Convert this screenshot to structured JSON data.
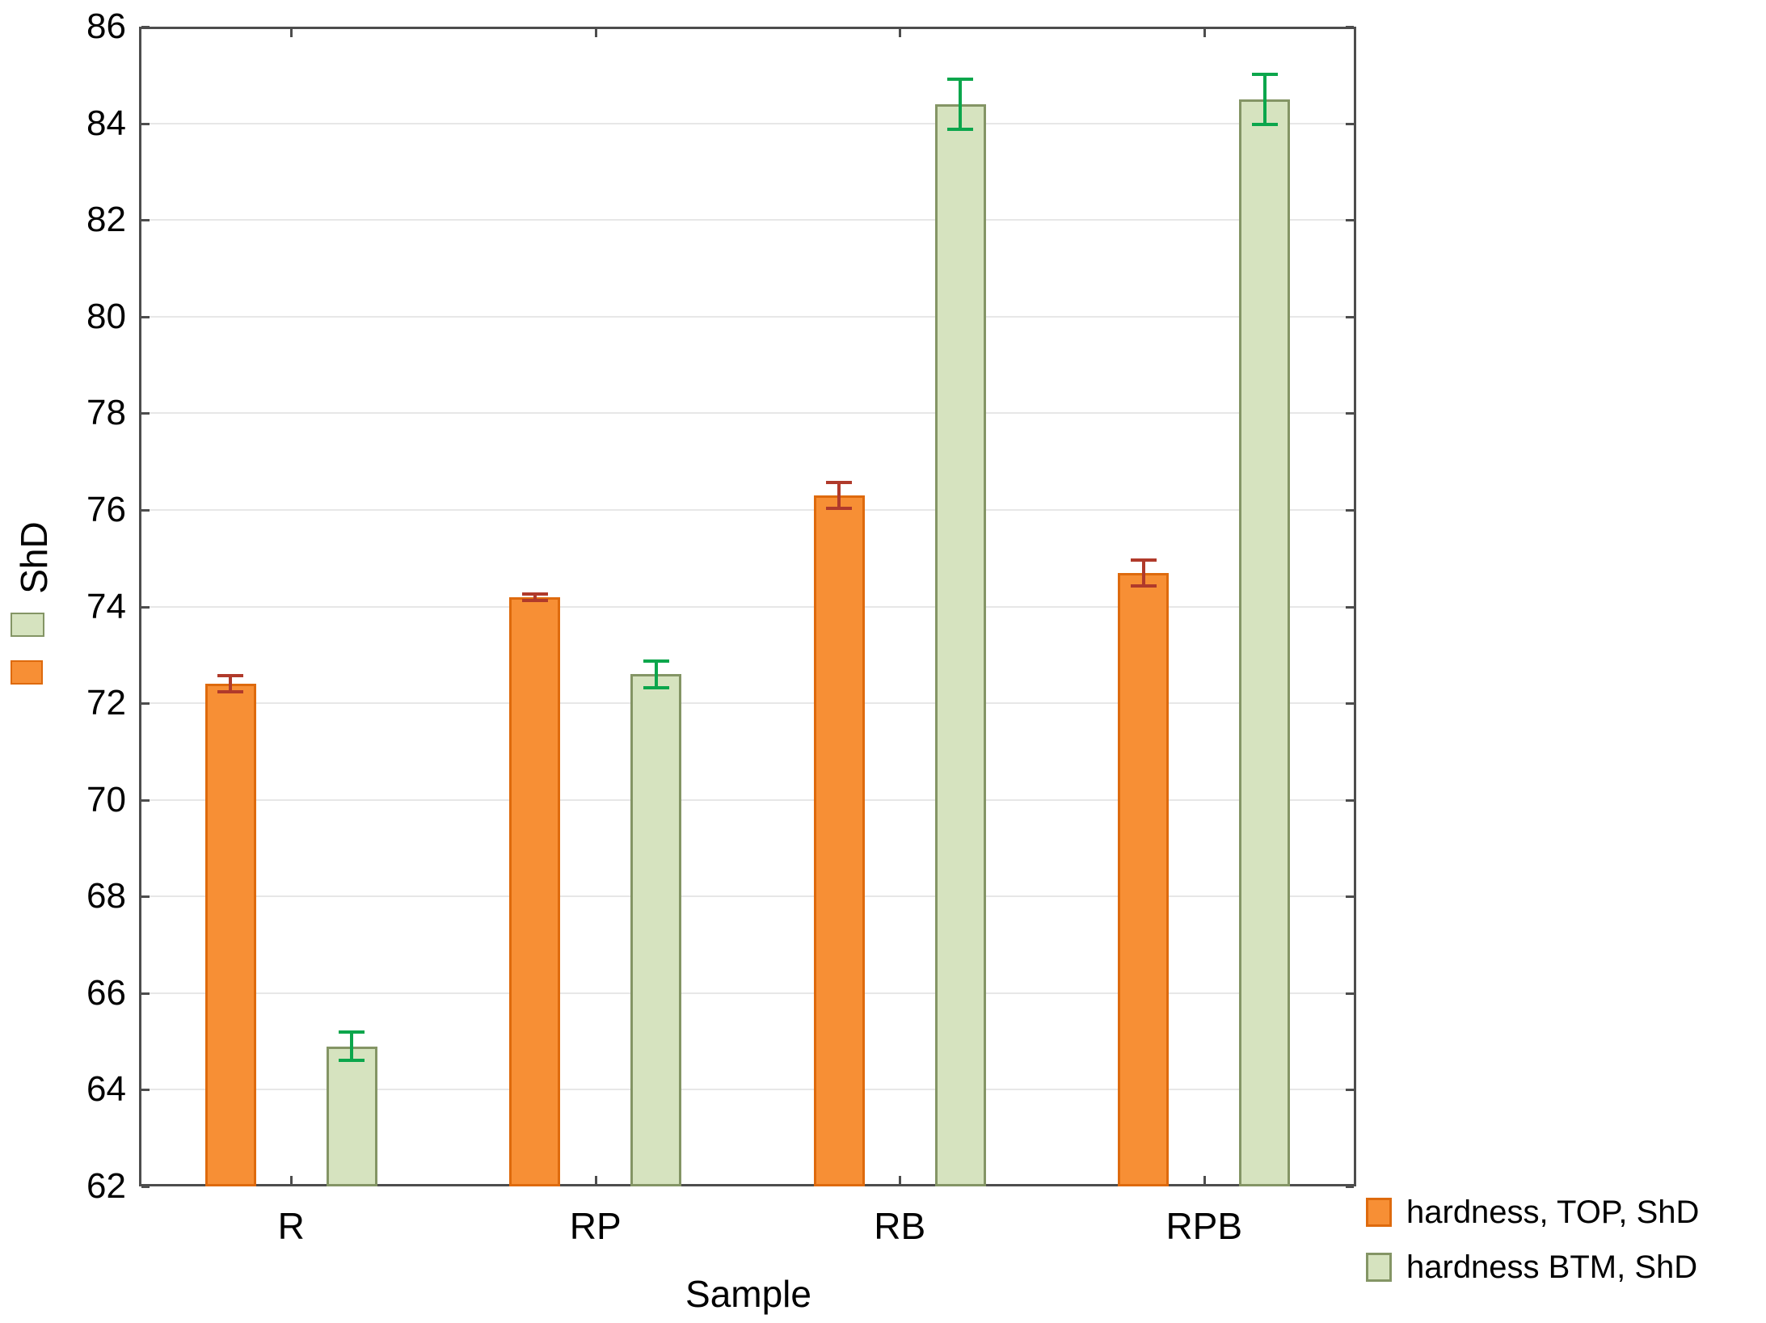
{
  "chart_data": {
    "type": "bar",
    "title": "",
    "xlabel": "Sample",
    "ylabel": "ShD",
    "categories": [
      "R",
      "RP",
      "RB",
      "RPB"
    ],
    "series": [
      {
        "name": "hardness, TOP, ShD",
        "fill": "#F78F35",
        "border": "#DE6A0D",
        "error_color": "#B03A2B",
        "values": [
          72.4,
          74.2,
          76.3,
          74.7
        ],
        "errors": [
          0.2,
          0.1,
          0.3,
          0.3
        ]
      },
      {
        "name": "hardness BTM, ShD",
        "fill": "#D6E3BF",
        "border": "#849565",
        "error_color": "#0CA64C",
        "values": [
          64.9,
          72.6,
          84.4,
          84.5
        ],
        "errors": [
          0.33,
          0.31,
          0.55,
          0.55
        ]
      }
    ],
    "ylim": [
      62,
      86
    ],
    "ytick_step": 2,
    "yticks": [
      62,
      64,
      66,
      68,
      70,
      72,
      74,
      76,
      78,
      80,
      82,
      84,
      86
    ],
    "grid": true,
    "legend_position": "bottom-right",
    "frame_color": "#4D4D4D",
    "grid_color": "#E7E7E7",
    "text_color": "#000000"
  }
}
